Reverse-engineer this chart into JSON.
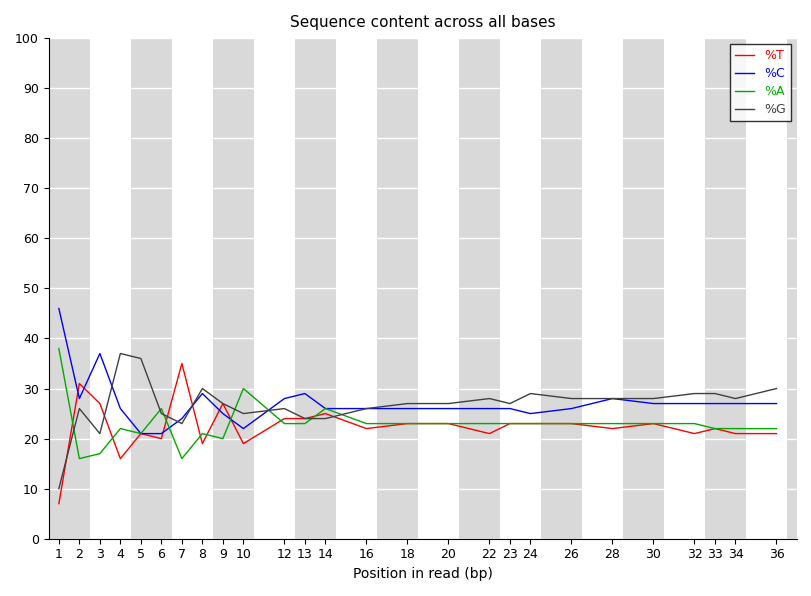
{
  "title": "Sequence content across all bases",
  "xlabel": "Position in read (bp)",
  "ylabel": "",
  "ylim": [
    0,
    100
  ],
  "yticks": [
    0,
    10,
    20,
    30,
    40,
    50,
    60,
    70,
    80,
    90,
    100
  ],
  "x_positions": [
    1,
    2,
    3,
    4,
    5,
    6,
    7,
    8,
    9,
    10,
    12,
    13,
    14,
    16,
    18,
    20,
    22,
    23,
    24,
    26,
    28,
    30,
    32,
    33,
    34,
    36
  ],
  "x_labels": [
    "1",
    "2",
    "3",
    "4",
    "5",
    "6",
    "7",
    "8",
    "9",
    "10",
    "12",
    "13",
    "14",
    "16",
    "18",
    "20",
    "22",
    "23",
    "24",
    "26",
    "28",
    "30",
    "32",
    "33",
    "34",
    "36"
  ],
  "T": [
    7,
    31,
    27,
    16,
    21,
    20,
    35,
    19,
    27,
    19,
    24,
    24,
    25,
    22,
    23,
    23,
    21,
    23,
    23,
    23,
    22,
    23,
    21,
    22,
    21,
    21
  ],
  "C": [
    46,
    28,
    37,
    26,
    21,
    21,
    24,
    29,
    25,
    22,
    28,
    29,
    26,
    26,
    26,
    26,
    26,
    26,
    25,
    26,
    28,
    27,
    27,
    27,
    27,
    27
  ],
  "A": [
    38,
    16,
    17,
    22,
    21,
    26,
    16,
    21,
    20,
    30,
    23,
    23,
    26,
    23,
    23,
    23,
    23,
    23,
    23,
    23,
    23,
    23,
    23,
    22,
    22,
    22
  ],
  "G": [
    10,
    26,
    21,
    37,
    36,
    25,
    23,
    30,
    27,
    25,
    26,
    24,
    24,
    26,
    27,
    27,
    28,
    27,
    29,
    28,
    28,
    28,
    29,
    29,
    28,
    30
  ],
  "color_T": "#ff0000",
  "color_C": "#0000ff",
  "color_A": "#00aa00",
  "color_G": "#404040",
  "bg_color_light": "#d9d9d9",
  "bg_color_white": "#ffffff",
  "legend_labels": [
    "%T",
    "%C",
    "%A",
    "%G"
  ]
}
